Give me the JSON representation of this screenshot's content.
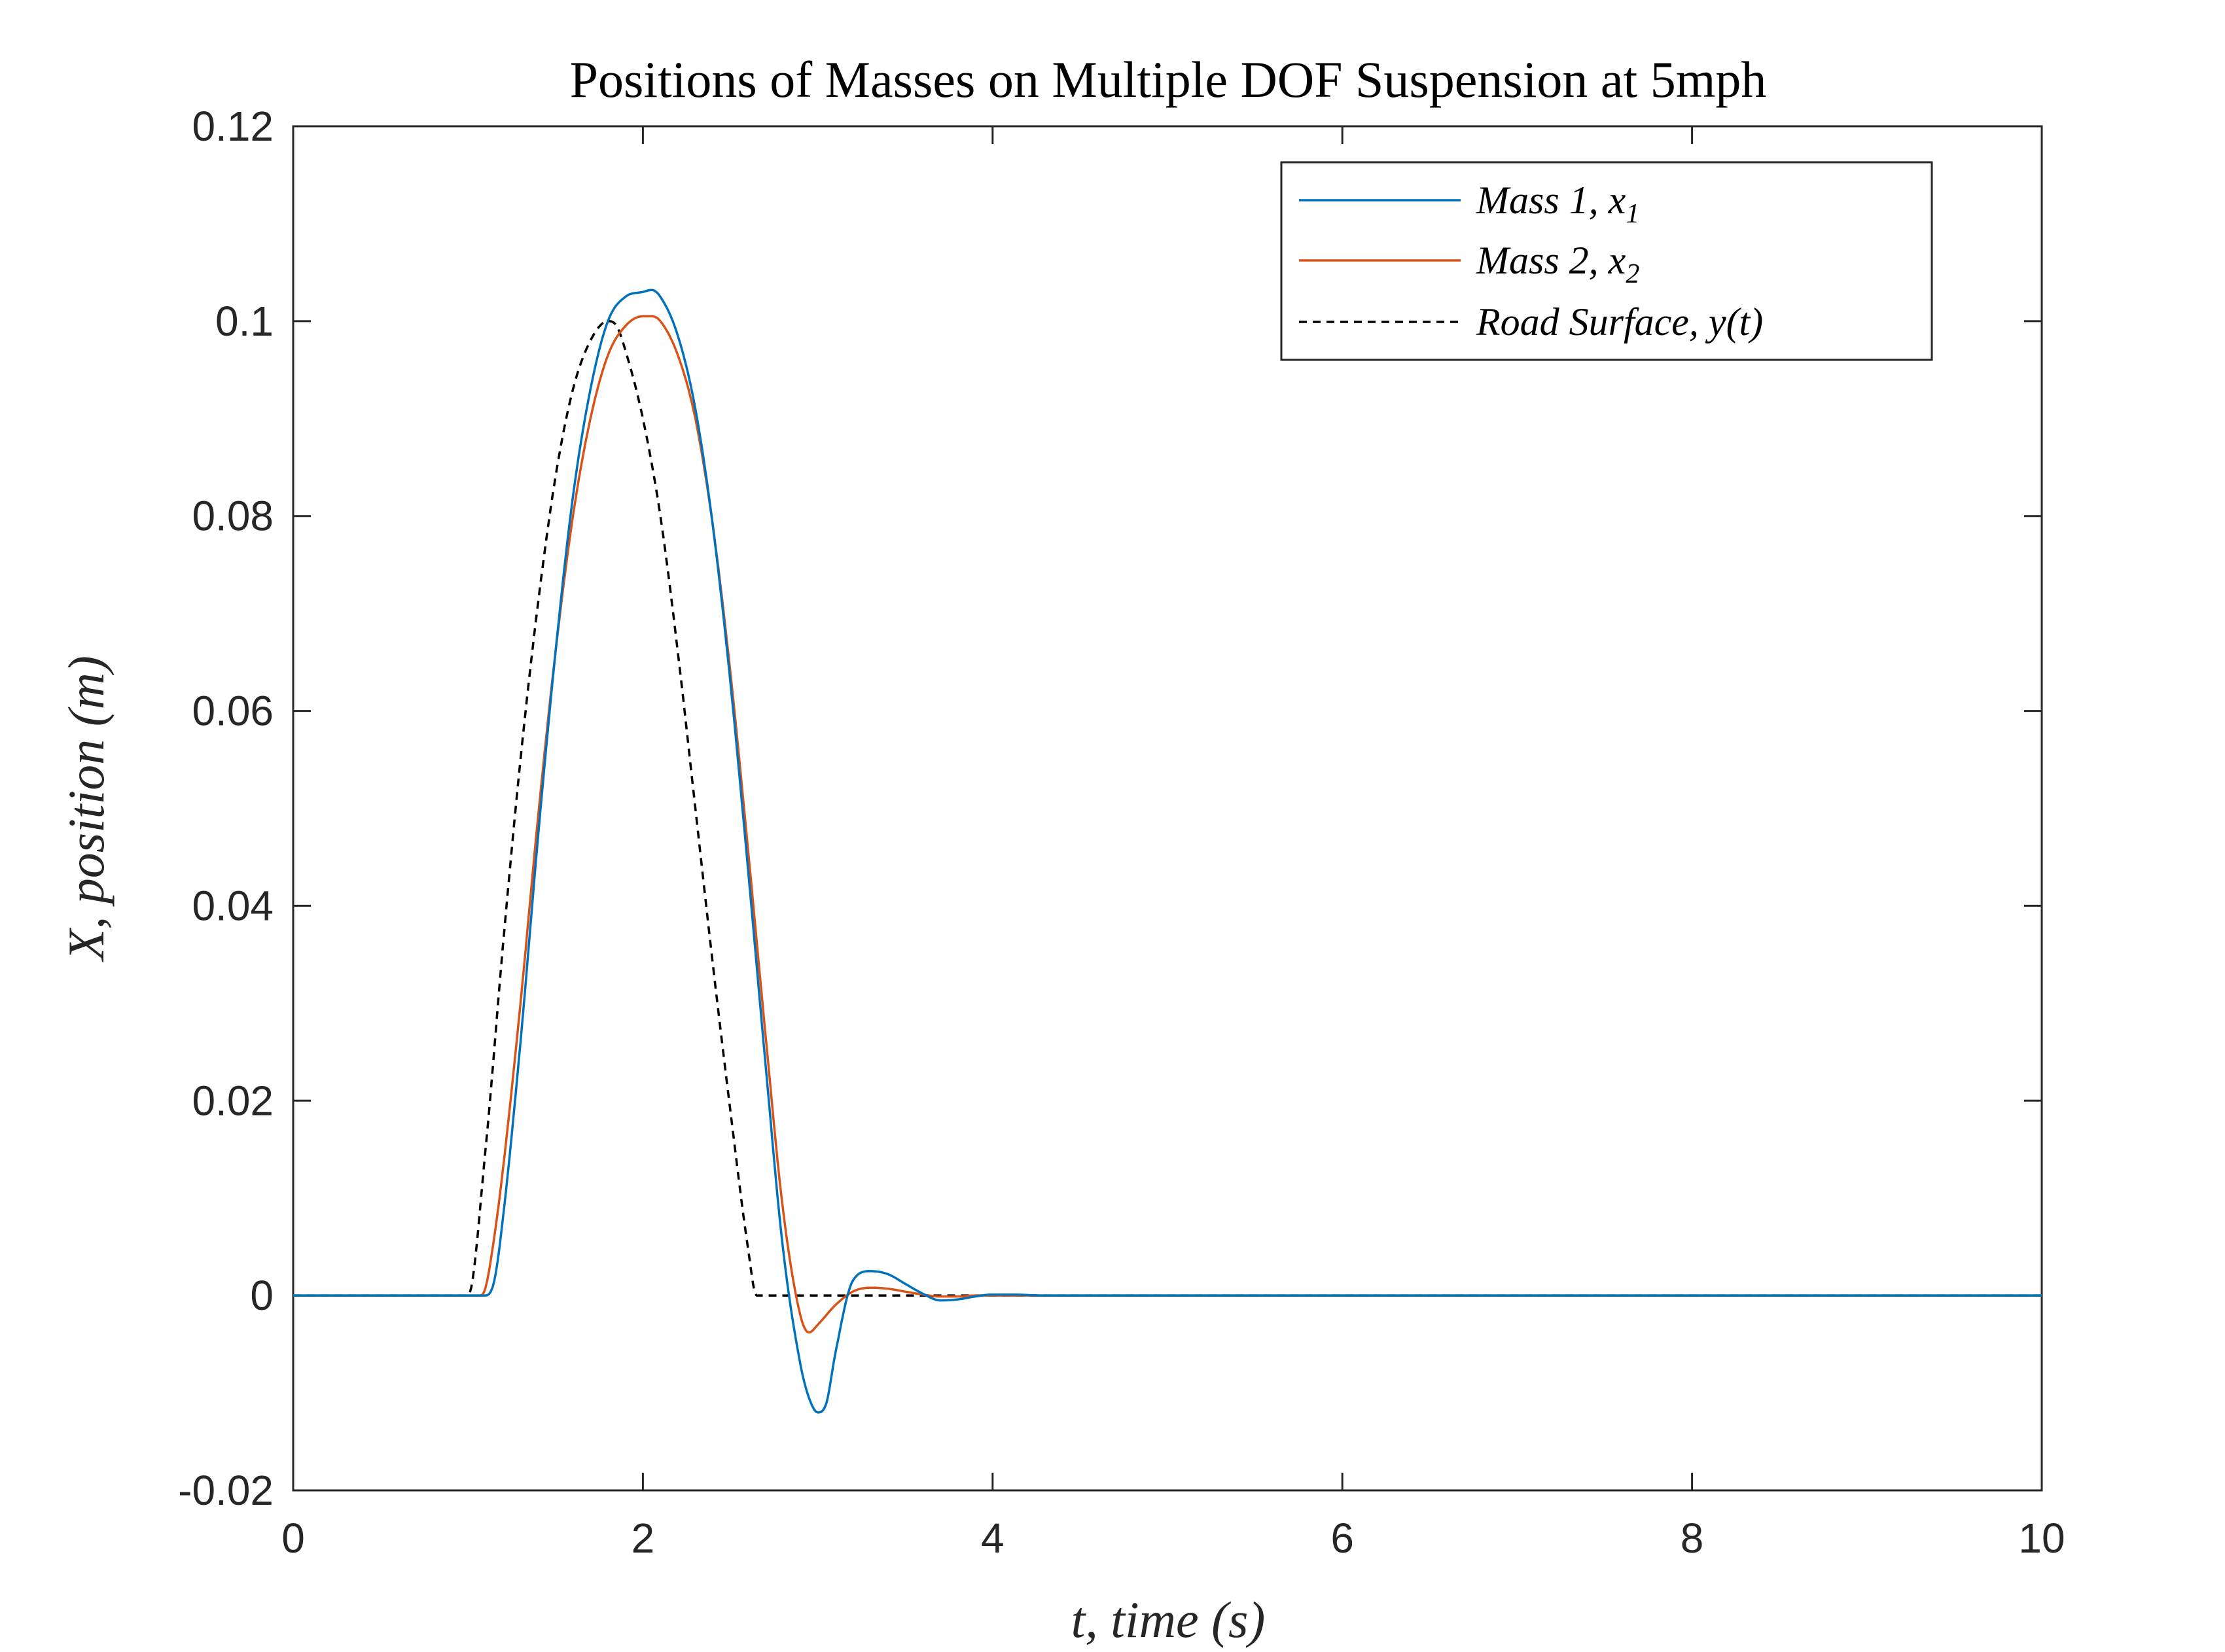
{
  "chart_data": {
    "type": "line",
    "title": "Positions of Masses on Multiple DOF Suspension at 5mph",
    "xlabel": "t, time (s)",
    "ylabel": "X, position (m)",
    "xlim": [
      0,
      10
    ],
    "ylim": [
      -0.02,
      0.12
    ],
    "xticks": [
      0,
      2,
      4,
      6,
      8,
      10
    ],
    "xtick_labels": [
      "0",
      "2",
      "4",
      "6",
      "8",
      "10"
    ],
    "yticks": [
      -0.02,
      0,
      0.02,
      0.04,
      0.06,
      0.08,
      0.1,
      0.12
    ],
    "ytick_labels": [
      "-0.02",
      "0",
      "0.02",
      "0.04",
      "0.06",
      "0.08",
      "0.1",
      "0.12"
    ],
    "grid": false,
    "legend_position": "top-right",
    "series": [
      {
        "name": "Mass 1, x1",
        "color": "#0072BD",
        "style": "solid",
        "x": [
          0,
          1.0,
          1.1,
          1.15,
          1.2,
          1.3,
          1.4,
          1.5,
          1.6,
          1.7,
          1.8,
          1.9,
          2.0,
          2.05,
          2.1,
          2.2,
          2.3,
          2.4,
          2.5,
          2.6,
          2.7,
          2.8,
          2.9,
          2.95,
          3.0,
          3.05,
          3.1,
          3.2,
          3.3,
          3.4,
          3.5,
          3.6,
          3.7,
          3.8,
          3.9,
          4.0,
          4.1,
          4.3,
          5,
          10
        ],
        "y": [
          0,
          0,
          0,
          0.0015,
          0.008,
          0.026,
          0.047,
          0.066,
          0.082,
          0.093,
          0.1,
          0.1025,
          0.103,
          0.1032,
          0.1025,
          0.0985,
          0.091,
          0.079,
          0.063,
          0.044,
          0.024,
          0.005,
          -0.007,
          -0.0105,
          -0.012,
          -0.011,
          -0.006,
          0.0015,
          0.0025,
          0.0022,
          0.0012,
          0.0002,
          -0.0005,
          -0.0004,
          -0.0001,
          0.0001,
          0.0001,
          0,
          0,
          0
        ]
      },
      {
        "name": "Mass 2, x2",
        "color": "#D95319",
        "style": "solid",
        "x": [
          0,
          1.0,
          1.07,
          1.1,
          1.15,
          1.2,
          1.3,
          1.4,
          1.5,
          1.6,
          1.7,
          1.8,
          1.9,
          2.0,
          2.05,
          2.1,
          2.2,
          2.3,
          2.4,
          2.5,
          2.6,
          2.7,
          2.8,
          2.9,
          2.95,
          3.0,
          3.1,
          3.2,
          3.3,
          3.4,
          3.5,
          3.6,
          3.7,
          3.8,
          3.9,
          4.0,
          4.2,
          5,
          10
        ],
        "y": [
          0,
          0,
          0,
          0.0008,
          0.006,
          0.013,
          0.03,
          0.049,
          0.066,
          0.08,
          0.09,
          0.0965,
          0.0995,
          0.1005,
          0.1005,
          0.1,
          0.0965,
          0.09,
          0.079,
          0.064,
          0.046,
          0.027,
          0.009,
          -0.002,
          -0.0038,
          -0.003,
          -0.001,
          0.0004,
          0.0008,
          0.0007,
          0.0004,
          0.0001,
          -0.0001,
          -0.0001,
          0,
          0,
          0,
          0,
          0
        ]
      },
      {
        "name": "Road Surface, y(t)",
        "color": "#000000",
        "style": "dashed",
        "x": [
          0,
          1.0,
          1.1,
          1.2,
          1.3,
          1.4,
          1.5,
          1.6,
          1.7,
          1.8,
          1.85,
          1.9,
          2.0,
          2.1,
          2.2,
          2.3,
          2.4,
          2.5,
          2.6,
          2.65,
          10
        ],
        "y": [
          0,
          0,
          0.015,
          0.036,
          0.055,
          0.071,
          0.084,
          0.093,
          0.098,
          0.1,
          0.0995,
          0.097,
          0.09,
          0.08,
          0.066,
          0.05,
          0.034,
          0.019,
          0.005,
          0,
          0
        ]
      }
    ]
  },
  "legend": {
    "entries": [
      {
        "main": "Mass 1,  x",
        "sub": "1"
      },
      {
        "main": "Mass 2,  x",
        "sub": "2"
      },
      {
        "main": "Road Surface,  y(t)",
        "sub": ""
      }
    ]
  }
}
